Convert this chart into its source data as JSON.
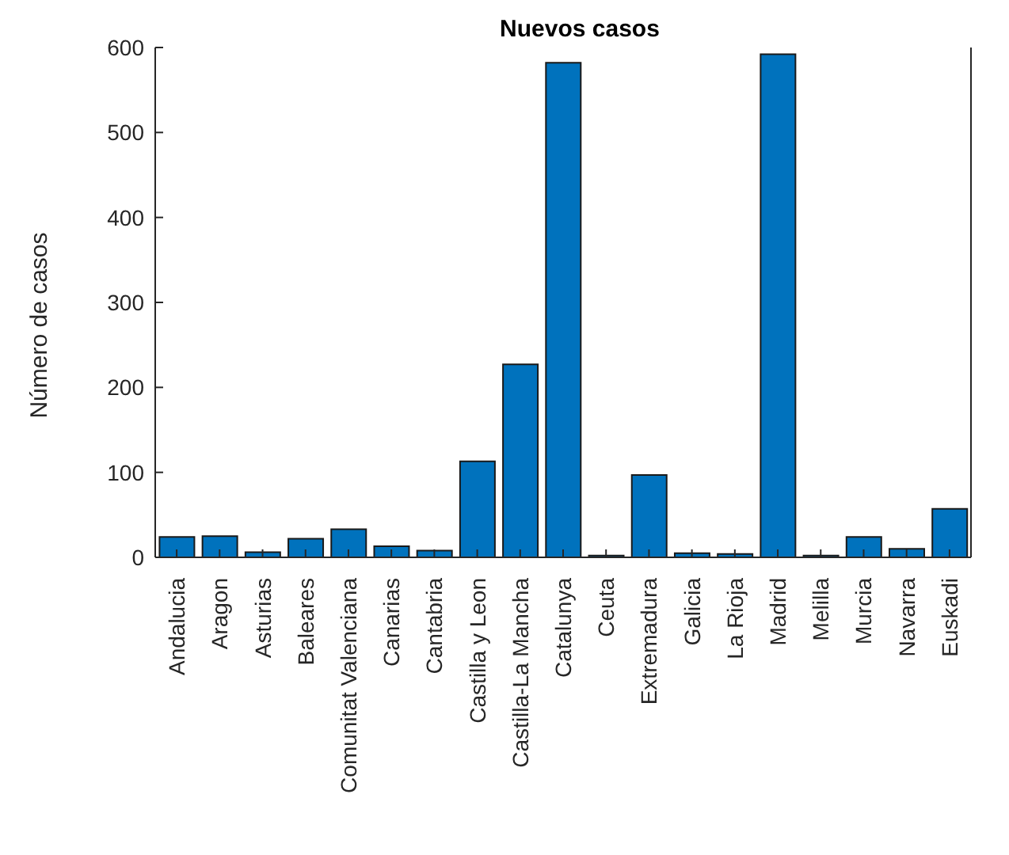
{
  "chart_data": {
    "type": "bar",
    "title": "Nuevos casos",
    "ylabel": "Número de casos",
    "categories": [
      "Andalucia",
      "Aragon",
      "Asturias",
      "Baleares",
      "Comunitat Valenciana",
      "Canarias",
      "Cantabria",
      "Castilla y Leon",
      "Castilla-La Mancha",
      "Catalunya",
      "Ceuta",
      "Extremadura",
      "Galicia",
      "La Rioja",
      "Madrid",
      "Melilla",
      "Murcia",
      "Navarra",
      "Euskadi"
    ],
    "values": [
      24,
      25,
      6,
      22,
      33,
      13,
      8,
      113,
      227,
      582,
      2,
      97,
      5,
      4,
      592,
      2,
      24,
      10,
      57
    ],
    "color": "#0072bd",
    "ylim": [
      0,
      600
    ],
    "yticks": [
      0,
      100,
      200,
      300,
      400,
      500,
      600
    ],
    "grid": false
  }
}
